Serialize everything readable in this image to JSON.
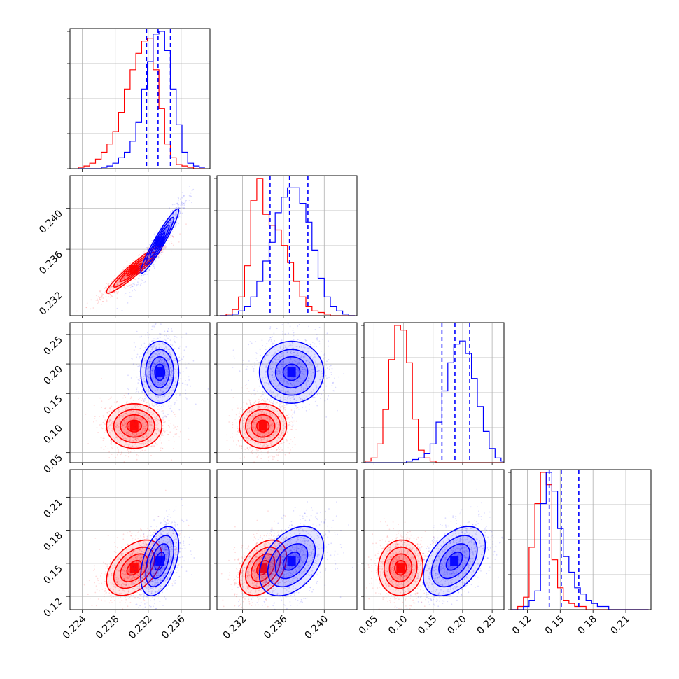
{
  "chart_data": {
    "type": "corner",
    "parameters": 4,
    "series_colors": {
      "red": "#ff0000",
      "blue": "#0000ff"
    },
    "grid": true,
    "diagonal_histograms": [
      {
        "param": 0,
        "x_ticks": [
          "0.224",
          "0.228",
          "0.232",
          "0.236"
        ],
        "xlim": [
          0.2225,
          0.2395
        ],
        "red": {
          "bin_start": 0.2235,
          "bin_width": 0.0007,
          "counts": [
            1,
            2,
            4,
            7,
            12,
            18,
            27,
            41,
            58,
            72,
            84,
            93,
            95,
            72,
            44,
            18,
            8,
            3,
            2,
            1,
            0,
            0
          ]
        },
        "blue": {
          "bin_start": 0.2235,
          "bin_width": 0.0007,
          "counts": [
            0,
            0,
            0,
            0,
            1,
            2,
            4,
            8,
            12,
            20,
            34,
            58,
            78,
            98,
            100,
            86,
            58,
            32,
            12,
            4,
            2,
            1
          ]
        },
        "quantiles": [
          0.2318,
          0.2332,
          0.2347
        ]
      },
      {
        "param": 1,
        "x_ticks": [
          "0.232",
          "0.236",
          "0.240"
        ],
        "xlim": [
          0.2295,
          0.2432
        ],
        "red": {
          "bin_start": 0.2298,
          "bin_width": 0.0006,
          "counts": [
            0,
            1,
            4,
            12,
            32,
            74,
            88,
            65,
            58,
            55,
            45,
            34,
            22,
            12,
            6,
            3,
            2,
            1,
            0,
            0,
            0,
            0
          ]
        },
        "blue": {
          "bin_start": 0.2298,
          "bin_width": 0.0006,
          "counts": [
            0,
            0,
            1,
            3,
            6,
            12,
            22,
            35,
            47,
            66,
            76,
            82,
            82,
            72,
            60,
            42,
            24,
            12,
            6,
            3,
            1,
            0
          ]
        },
        "quantiles": [
          0.2347,
          0.2366,
          0.2384
        ]
      },
      {
        "param": 2,
        "x_ticks": [
          "0.05",
          "0.10",
          "0.15",
          "0.20",
          "0.25"
        ],
        "xlim": [
          0.033,
          0.27
        ],
        "red": {
          "bin_start": 0.035,
          "bin_width": 0.01,
          "counts": [
            1,
            3,
            12,
            34,
            66,
            88,
            85,
            64,
            28,
            8,
            3,
            1,
            0,
            0,
            0,
            0,
            0,
            0,
            0,
            0,
            0,
            0,
            0,
            0
          ]
        },
        "blue": {
          "bin_start": 0.035,
          "bin_width": 0.01,
          "counts": [
            0,
            0,
            0,
            0,
            0,
            0,
            0,
            1,
            2,
            3,
            6,
            12,
            26,
            46,
            64,
            76,
            78,
            70,
            54,
            36,
            20,
            9,
            3,
            1
          ]
        },
        "quantiles": [
          0.165,
          0.187,
          0.212
        ]
      },
      {
        "param": 3,
        "x_ticks": [
          "0.12",
          "0.15",
          "0.18",
          "0.21"
        ],
        "xlim": [
          0.105,
          0.233
        ],
        "red": {
          "bin_start": 0.106,
          "bin_width": 0.0052,
          "counts": [
            0,
            1,
            4,
            20,
            34,
            44,
            40,
            16,
            7,
            3,
            2,
            1,
            1,
            0,
            0,
            0,
            0,
            0,
            0,
            0,
            0,
            0,
            0,
            0
          ]
        },
        "blue": {
          "bin_start": 0.106,
          "bin_width": 0.0052,
          "counts": [
            0,
            0,
            1,
            3,
            6,
            34,
            44,
            38,
            26,
            17,
            12,
            7,
            5,
            3,
            2,
            1,
            1,
            0,
            0,
            0,
            0,
            0,
            0,
            0
          ]
        },
        "quantiles": [
          0.14,
          0.151,
          0.167
        ]
      }
    ],
    "y_ticks": {
      "1": [
        "0.232",
        "0.236",
        "0.240"
      ],
      "2": [
        "0.05",
        "0.10",
        "0.15",
        "0.20",
        "0.25"
      ],
      "3": [
        "0.12",
        "0.15",
        "0.18",
        "0.21"
      ]
    },
    "ylims": {
      "1": [
        0.2295,
        0.2432
      ],
      "2": [
        0.033,
        0.27
      ],
      "3": [
        0.108,
        0.235
      ]
    },
    "distributions": {
      "red": {
        "mean": [
          0.2303,
          0.234,
          0.095,
          0.146
        ],
        "sd": [
          0.0016,
          0.0011,
          0.018,
          0.012
        ]
      },
      "blue": {
        "mean": [
          0.2334,
          0.2368,
          0.186,
          0.152
        ],
        "sd": [
          0.0011,
          0.0015,
          0.025,
          0.015
        ]
      }
    },
    "correlations": {
      "red": {
        "0-1": 0.95,
        "0-2": 0.0,
        "1-2": 0.0,
        "0-3": 0.45,
        "1-3": 0.4,
        "2-3": 0.05
      },
      "blue": {
        "0-1": 0.95,
        "0-2": 0.0,
        "1-2": 0.0,
        "0-3": 0.45,
        "1-3": 0.4,
        "2-3": 0.45
      }
    }
  }
}
